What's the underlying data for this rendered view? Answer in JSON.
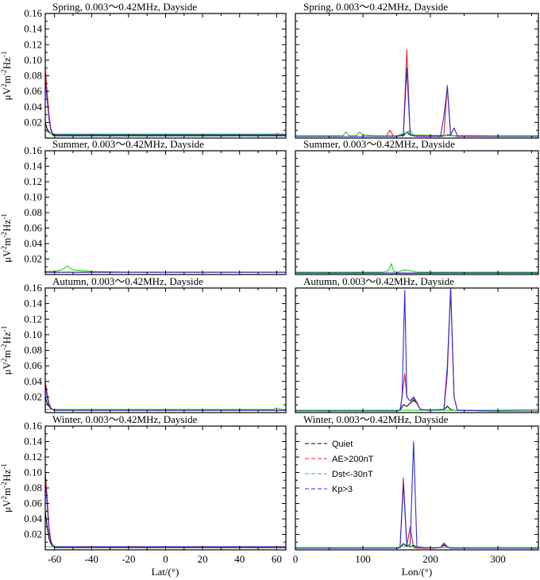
{
  "colors": {
    "Quiet": "#000000",
    "AE": "#e8201c",
    "Dst": "#22cc22",
    "Kp": "#2d2dd2"
  },
  "legend": [
    {
      "key": "Quiet",
      "label": "Quiet"
    },
    {
      "key": "AE",
      "label": "AE>200nT"
    },
    {
      "key": "Dst",
      "label": "Dst<-30nT"
    },
    {
      "key": "Kp",
      "label": "Kp>3"
    }
  ],
  "ylabel": "μV²m⁻²Hz⁻¹",
  "ylabel_superscripts": [
    "μV",
    "2",
    "m",
    "-2",
    "Hz",
    "-1"
  ],
  "xlabels": {
    "lat": "Lat/(°)",
    "lon": "Lon/(°)"
  },
  "ytick_labels": [
    "0.02",
    "0.04",
    "0.06",
    "0.08",
    "0.10",
    "0.12",
    "0.14",
    "0.16"
  ],
  "xtick_labels_lat": [
    "-60",
    "-40",
    "-20",
    "0",
    "20",
    "40",
    "60"
  ],
  "xtick_labels_lon": [
    "0",
    "100",
    "200",
    "300"
  ],
  "chart_data": [
    {
      "type": "line",
      "title": "Spring, 0.003～0.42MHz, Dayside",
      "xlabel": "Lat/(°)",
      "ylabel": "μV²m⁻²Hz⁻¹",
      "xlim": [
        -65,
        65
      ],
      "ylim": [
        0,
        0.16
      ],
      "series": [
        {
          "name": "Quiet",
          "x": [
            -65,
            -64,
            -63,
            -62,
            -61,
            -60,
            -55,
            -40,
            -20,
            0,
            20,
            40,
            60,
            65
          ],
          "y": [
            0.02,
            0.012,
            0.008,
            0.006,
            0.004,
            0.003,
            0.003,
            0.003,
            0.003,
            0.003,
            0.003,
            0.003,
            0.003,
            0.003
          ]
        },
        {
          "name": "AE>200nT",
          "x": [
            -65,
            -64,
            -63,
            -62,
            -61,
            -60,
            -55,
            -40,
            -20,
            0,
            20,
            40,
            60,
            65
          ],
          "y": [
            0.09,
            0.06,
            0.03,
            0.012,
            0.006,
            0.004,
            0.004,
            0.004,
            0.004,
            0.004,
            0.004,
            0.004,
            0.004,
            0.004
          ]
        },
        {
          "name": "Dst<-30nT",
          "x": [
            -65,
            -63,
            -61,
            -60,
            -55,
            -40,
            -20,
            0,
            20,
            40,
            58,
            60,
            62,
            65
          ],
          "y": [
            0.01,
            0.007,
            0.005,
            0.005,
            0.005,
            0.005,
            0.005,
            0.005,
            0.005,
            0.005,
            0.005,
            0.006,
            0.005,
            0.005
          ]
        },
        {
          "name": "Kp>3",
          "x": [
            -65,
            -64,
            -63,
            -62,
            -61,
            -60,
            -55,
            -40,
            -20,
            0,
            20,
            40,
            60,
            65
          ],
          "y": [
            0.075,
            0.05,
            0.025,
            0.01,
            0.005,
            0.004,
            0.004,
            0.004,
            0.004,
            0.004,
            0.004,
            0.004,
            0.004,
            0.004
          ]
        }
      ]
    },
    {
      "type": "line",
      "title": "Spring, 0.003～0.42MHz, Dayside",
      "xlabel": "Lon/(°)",
      "ylabel": "μV²m⁻²Hz⁻¹",
      "xlim": [
        0,
        360
      ],
      "ylim": [
        0,
        0.16
      ],
      "series": [
        {
          "name": "Quiet",
          "x": [
            0,
            60,
            120,
            150,
            155,
            160,
            165,
            170,
            175,
            180,
            215,
            220,
            225,
            230,
            235,
            240,
            300,
            360
          ],
          "y": [
            0.002,
            0.002,
            0.002,
            0.002,
            0.003,
            0.003,
            0.008,
            0.004,
            0.003,
            0.002,
            0.002,
            0.003,
            0.004,
            0.004,
            0.003,
            0.002,
            0.002,
            0.002
          ]
        },
        {
          "name": "AE>200nT",
          "x": [
            0,
            60,
            120,
            135,
            140,
            145,
            150,
            155,
            160,
            165,
            170,
            175,
            180,
            200,
            215,
            220,
            225,
            230,
            235,
            240,
            300,
            360
          ],
          "y": [
            0.002,
            0.002,
            0.002,
            0.003,
            0.01,
            0.003,
            0.003,
            0.003,
            0.005,
            0.113,
            0.005,
            0.003,
            0.003,
            0.003,
            0.003,
            0.004,
            0.068,
            0.004,
            0.003,
            0.002,
            0.002,
            0.002
          ]
        },
        {
          "name": "Dst<-30nT",
          "x": [
            0,
            60,
            70,
            75,
            80,
            90,
            95,
            100,
            120,
            140,
            150,
            165,
            170,
            175,
            240,
            300,
            360
          ],
          "y": [
            0.003,
            0.003,
            0.003,
            0.008,
            0.003,
            0.003,
            0.008,
            0.004,
            0.003,
            0.003,
            0.003,
            0.007,
            0.01,
            0.004,
            0.003,
            0.003,
            0.003
          ]
        },
        {
          "name": "Kp>3",
          "x": [
            0,
            60,
            120,
            150,
            155,
            160,
            165,
            170,
            175,
            180,
            210,
            215,
            220,
            225,
            230,
            235,
            240,
            300,
            360
          ],
          "y": [
            0.002,
            0.002,
            0.002,
            0.002,
            0.003,
            0.005,
            0.09,
            0.005,
            0.003,
            0.002,
            0.002,
            0.003,
            0.028,
            0.065,
            0.004,
            0.013,
            0.003,
            0.002,
            0.002
          ]
        }
      ]
    },
    {
      "type": "line",
      "title": "Summer, 0.003～0.42MHz, Dayside",
      "xlabel": "Lat/(°)",
      "ylabel": "μV²m⁻²Hz⁻¹",
      "xlim": [
        -65,
        65
      ],
      "ylim": [
        0,
        0.16
      ],
      "series": [
        {
          "name": "Quiet",
          "x": [
            -65,
            -40,
            0,
            40,
            65
          ],
          "y": [
            0.003,
            0.003,
            0.003,
            0.003,
            0.003
          ]
        },
        {
          "name": "AE>200nT",
          "x": [
            -65,
            -40,
            0,
            40,
            65
          ],
          "y": [
            0.003,
            0.003,
            0.003,
            0.003,
            0.003
          ]
        },
        {
          "name": "Dst<-30nT",
          "x": [
            -65,
            -60,
            -56,
            -53,
            -50,
            -45,
            -40,
            -20,
            0,
            20,
            40,
            60,
            65
          ],
          "y": [
            0.004,
            0.004,
            0.006,
            0.011,
            0.006,
            0.005,
            0.004,
            0.003,
            0.003,
            0.003,
            0.003,
            0.003,
            0.003
          ]
        },
        {
          "name": "Kp>3",
          "x": [
            -65,
            -40,
            0,
            40,
            65
          ],
          "y": [
            0.003,
            0.003,
            0.003,
            0.003,
            0.003
          ]
        }
      ]
    },
    {
      "type": "line",
      "title": "Summer, 0.003～0.42MHz, Dayside",
      "xlabel": "Lon/(°)",
      "ylabel": "μV²m⁻²Hz⁻¹",
      "xlim": [
        0,
        360
      ],
      "ylim": [
        0,
        0.16
      ],
      "series": [
        {
          "name": "Quiet",
          "x": [
            0,
            100,
            200,
            300,
            360
          ],
          "y": [
            0.002,
            0.002,
            0.002,
            0.002,
            0.002
          ]
        },
        {
          "name": "AE>200nT",
          "x": [
            0,
            100,
            200,
            300,
            360
          ],
          "y": [
            0.002,
            0.002,
            0.002,
            0.002,
            0.002
          ]
        },
        {
          "name": "Dst<-30nT",
          "x": [
            0,
            100,
            130,
            138,
            142,
            146,
            152,
            160,
            170,
            180,
            200,
            300,
            360
          ],
          "y": [
            0.003,
            0.003,
            0.003,
            0.005,
            0.014,
            0.004,
            0.003,
            0.006,
            0.005,
            0.003,
            0.003,
            0.003,
            0.003
          ]
        },
        {
          "name": "Kp>3",
          "x": [
            0,
            100,
            200,
            300,
            360
          ],
          "y": [
            0.002,
            0.002,
            0.002,
            0.002,
            0.002
          ]
        }
      ]
    },
    {
      "type": "line",
      "title": "Autumn, 0.003～0.42MHz, Dayside",
      "xlabel": "Lat/(°)",
      "ylabel": "μV²m⁻²Hz⁻¹",
      "xlim": [
        -65,
        65
      ],
      "ylim": [
        0,
        0.16
      ],
      "series": [
        {
          "name": "Quiet",
          "x": [
            -65,
            -64,
            -63,
            -62,
            -61,
            -60,
            -40,
            0,
            40,
            65
          ],
          "y": [
            0.02,
            0.012,
            0.008,
            0.005,
            0.004,
            0.003,
            0.003,
            0.003,
            0.003,
            0.003
          ]
        },
        {
          "name": "AE>200nT",
          "x": [
            -65,
            -64,
            -63,
            -62,
            -61,
            -60,
            -40,
            0,
            40,
            65
          ],
          "y": [
            0.04,
            0.025,
            0.012,
            0.006,
            0.004,
            0.003,
            0.003,
            0.003,
            0.003,
            0.003
          ]
        },
        {
          "name": "Dst<-30nT",
          "x": [
            -65,
            -60,
            -40,
            0,
            40,
            58,
            60,
            63,
            65
          ],
          "y": [
            0.004,
            0.004,
            0.004,
            0.004,
            0.004,
            0.004,
            0.006,
            0.004,
            0.004
          ]
        },
        {
          "name": "Kp>3",
          "x": [
            -65,
            -64,
            -63,
            -62,
            -61,
            -60,
            -40,
            0,
            40,
            65
          ],
          "y": [
            0.035,
            0.02,
            0.01,
            0.005,
            0.004,
            0.003,
            0.003,
            0.003,
            0.003,
            0.003
          ]
        }
      ]
    },
    {
      "type": "line",
      "title": "Autumn, 0.003～0.42MHz, Dayside",
      "xlabel": "Lon/(°)",
      "ylabel": "μV²m⁻²Hz⁻¹",
      "xlim": [
        0,
        360
      ],
      "ylim": [
        0,
        0.16
      ],
      "series": [
        {
          "name": "Quiet",
          "x": [
            0,
            100,
            150,
            155,
            160,
            165,
            170,
            175,
            180,
            185,
            200,
            220,
            225,
            230,
            235,
            300,
            360
          ],
          "y": [
            0.002,
            0.002,
            0.002,
            0.003,
            0.01,
            0.008,
            0.012,
            0.016,
            0.012,
            0.004,
            0.003,
            0.004,
            0.008,
            0.004,
            0.003,
            0.002,
            0.002
          ]
        },
        {
          "name": "AE>200nT",
          "x": [
            0,
            100,
            150,
            155,
            158,
            162,
            165,
            170,
            175,
            180,
            185,
            200,
            220,
            225,
            230,
            235,
            240,
            300,
            360
          ],
          "y": [
            0.002,
            0.002,
            0.002,
            0.003,
            0.02,
            0.05,
            0.02,
            0.015,
            0.018,
            0.012,
            0.004,
            0.003,
            0.004,
            0.05,
            0.16,
            0.02,
            0.003,
            0.002,
            0.002
          ]
        },
        {
          "name": "Dst<-30nT",
          "x": [
            0,
            100,
            200,
            240,
            300,
            360
          ],
          "y": [
            0.003,
            0.003,
            0.003,
            0.003,
            0.003,
            0.004
          ]
        },
        {
          "name": "Kp>3",
          "x": [
            0,
            100,
            150,
            155,
            158,
            162,
            165,
            170,
            175,
            180,
            185,
            200,
            220,
            225,
            230,
            235,
            240,
            300,
            360
          ],
          "y": [
            0.002,
            0.002,
            0.002,
            0.003,
            0.02,
            0.157,
            0.02,
            0.015,
            0.02,
            0.013,
            0.004,
            0.003,
            0.004,
            0.06,
            0.16,
            0.02,
            0.003,
            0.002,
            0.002
          ]
        }
      ]
    },
    {
      "type": "line",
      "title": "Winter, 0.003～0.42MHz, Dayside",
      "xlabel": "Lat/(°)",
      "ylabel": "μV²m⁻²Hz⁻¹",
      "xlim": [
        -65,
        65
      ],
      "ylim": [
        0,
        0.16
      ],
      "series": [
        {
          "name": "Quiet",
          "x": [
            -65,
            -64,
            -63,
            -62,
            -61,
            -60,
            -40,
            0,
            40,
            65
          ],
          "y": [
            0.05,
            0.03,
            0.015,
            0.008,
            0.005,
            0.003,
            0.003,
            0.003,
            0.003,
            0.003
          ]
        },
        {
          "name": "AE>200nT",
          "x": [
            -65,
            -64,
            -63,
            -62,
            -61,
            -60,
            -40,
            0,
            40,
            65
          ],
          "y": [
            0.1,
            0.07,
            0.03,
            0.012,
            0.006,
            0.004,
            0.004,
            0.004,
            0.004,
            0.004
          ]
        },
        {
          "name": "Dst<-30nT",
          "x": [
            -65,
            -60,
            -40,
            0,
            40,
            65
          ],
          "y": [
            0.004,
            0.004,
            0.004,
            0.004,
            0.004,
            0.004
          ]
        },
        {
          "name": "Kp>3",
          "x": [
            -65,
            -64,
            -63,
            -62,
            -61,
            -60,
            -40,
            0,
            40,
            65
          ],
          "y": [
            0.09,
            0.06,
            0.025,
            0.01,
            0.005,
            0.004,
            0.004,
            0.004,
            0.004,
            0.004
          ]
        }
      ]
    },
    {
      "type": "line",
      "title": "Winter, 0.003～0.42MHz, Dayside",
      "xlabel": "Lon/(°)",
      "ylabel": "μV²m⁻²Hz⁻¹",
      "xlim": [
        0,
        360
      ],
      "ylim": [
        0,
        0.16
      ],
      "series": [
        {
          "name": "Quiet",
          "x": [
            0,
            100,
            150,
            155,
            160,
            165,
            170,
            175,
            180,
            200,
            215,
            220,
            225,
            230,
            300,
            360
          ],
          "y": [
            0.002,
            0.002,
            0.002,
            0.003,
            0.008,
            0.005,
            0.004,
            0.006,
            0.003,
            0.002,
            0.003,
            0.006,
            0.004,
            0.002,
            0.002,
            0.002
          ]
        },
        {
          "name": "AE>200nT",
          "x": [
            0,
            100,
            150,
            155,
            160,
            165,
            170,
            175,
            180,
            200,
            215,
            220,
            225,
            230,
            300,
            360
          ],
          "y": [
            0.002,
            0.002,
            0.002,
            0.003,
            0.093,
            0.005,
            0.03,
            0.003,
            0.002,
            0.002,
            0.003,
            0.009,
            0.004,
            0.002,
            0.002,
            0.002
          ]
        },
        {
          "name": "Dst<-30nT",
          "x": [
            0,
            100,
            150,
            160,
            165,
            170,
            180,
            200,
            300,
            360
          ],
          "y": [
            0.003,
            0.003,
            0.003,
            0.005,
            0.004,
            0.005,
            0.003,
            0.003,
            0.003,
            0.003
          ]
        },
        {
          "name": "Kp>3",
          "x": [
            0,
            100,
            150,
            155,
            160,
            165,
            170,
            175,
            180,
            200,
            215,
            220,
            225,
            230,
            300,
            360
          ],
          "y": [
            0.002,
            0.002,
            0.002,
            0.003,
            0.085,
            0.005,
            0.007,
            0.14,
            0.004,
            0.002,
            0.003,
            0.007,
            0.004,
            0.002,
            0.002,
            0.002
          ]
        }
      ]
    }
  ]
}
